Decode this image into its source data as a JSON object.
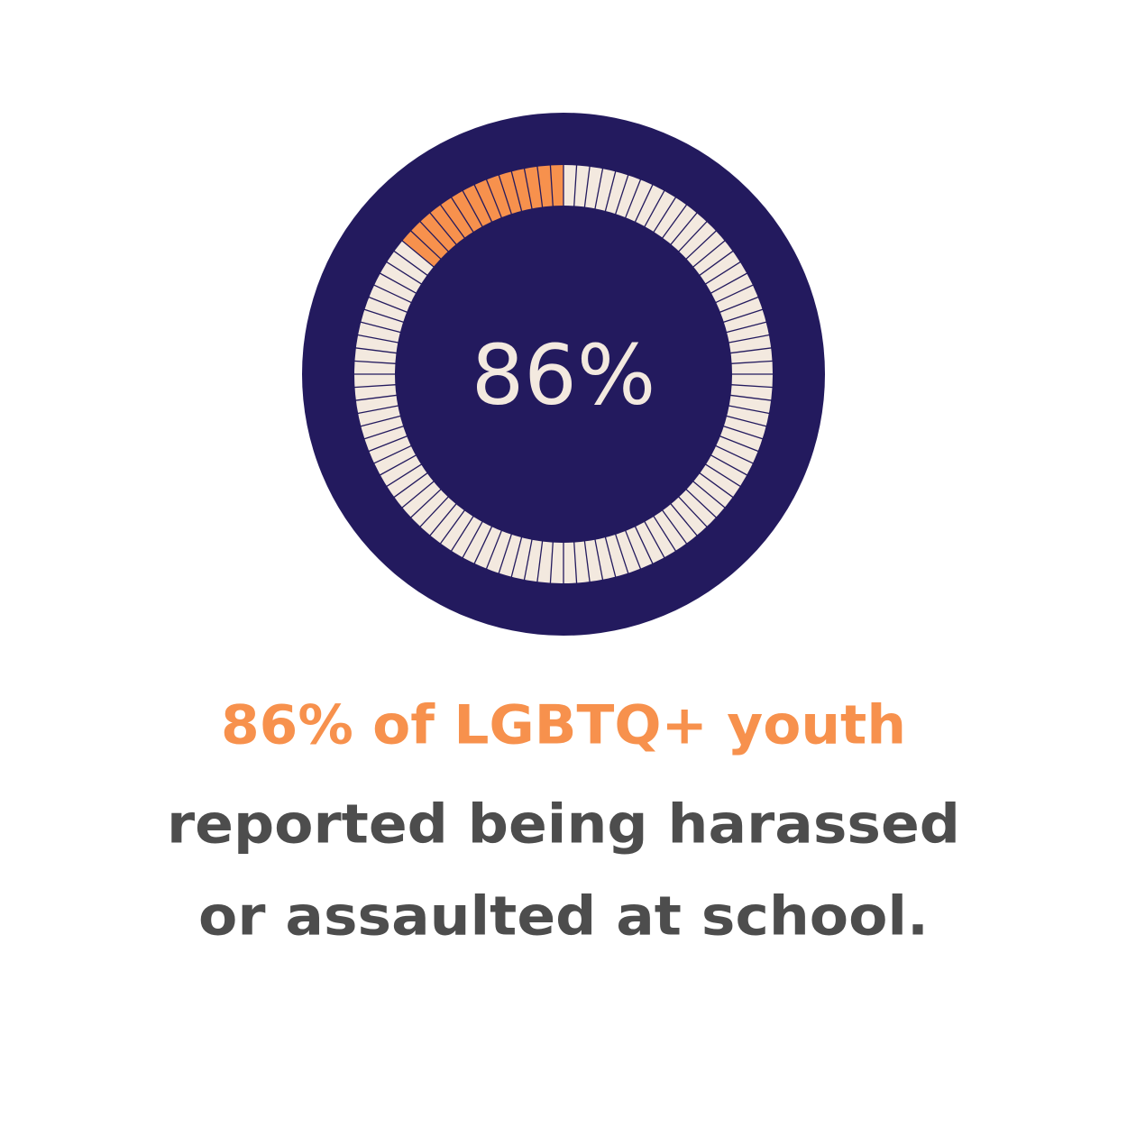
{
  "chart_data": {
    "type": "gauge",
    "values": [
      86
    ],
    "value_labels": [
      "86%"
    ],
    "ylim": [
      0,
      100
    ],
    "color": "#f3e9df",
    "remainder_color": "#f7914d",
    "background_color": "#231a5e"
  },
  "caption": {
    "highlight": "86%  of LGBTQ+ youth",
    "lines": [
      "reported being harassed",
      "or assaulted at school."
    ]
  }
}
